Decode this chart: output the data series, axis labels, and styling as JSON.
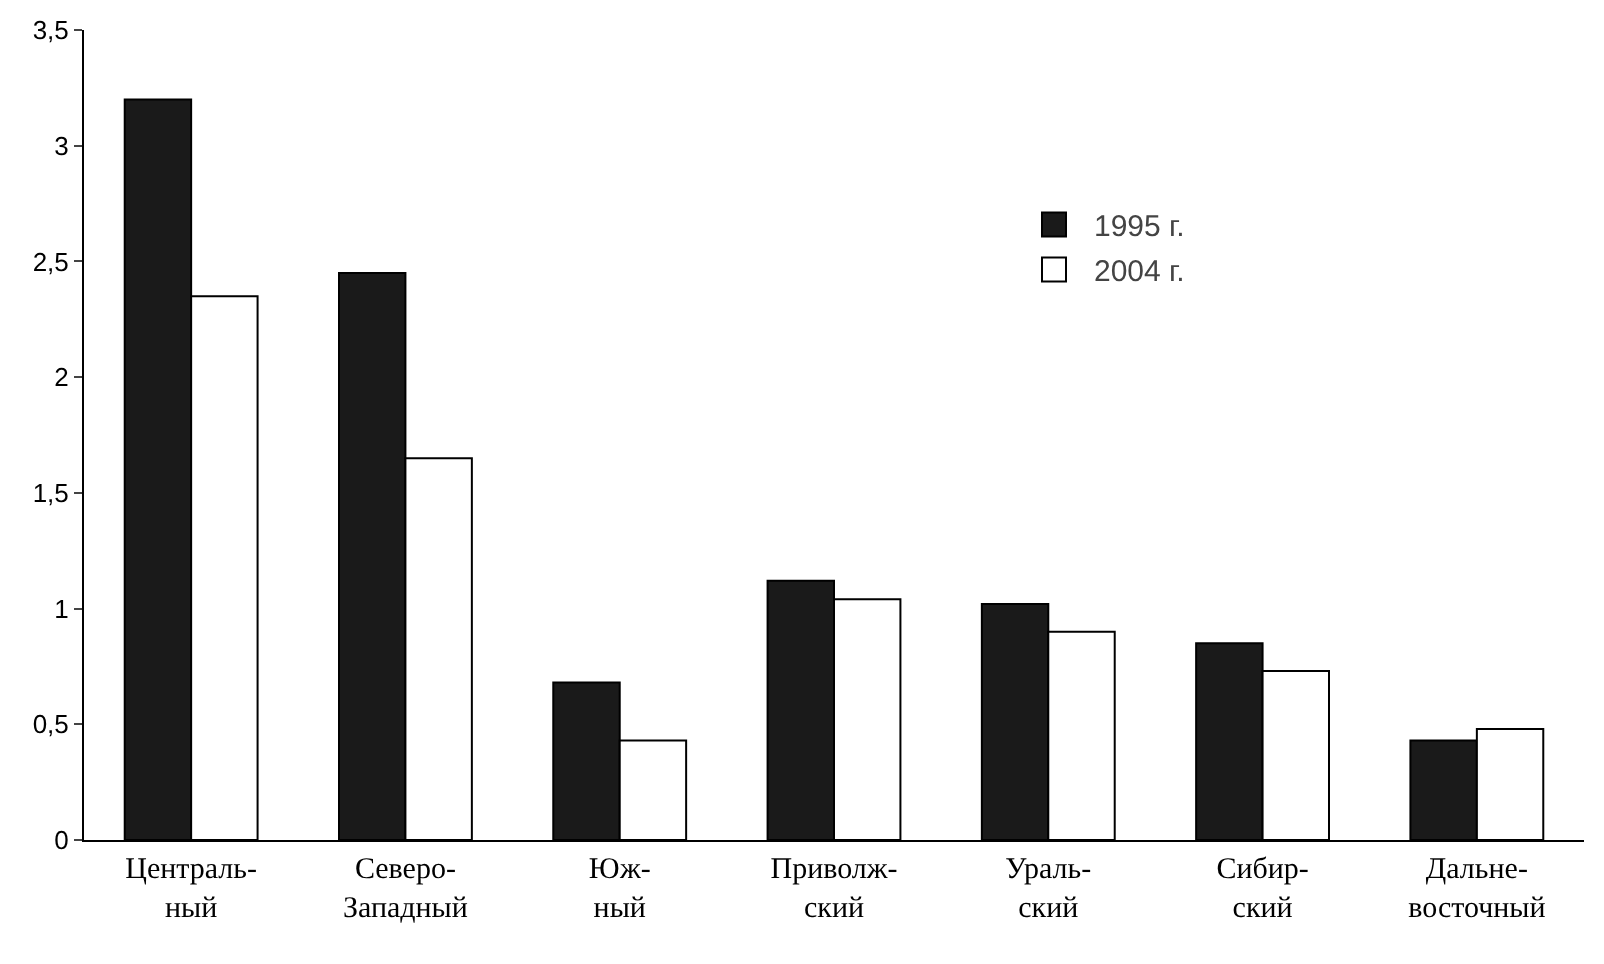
{
  "chart_data": {
    "type": "bar",
    "categories": [
      "Централь-\nный",
      "Северо-\nЗападный",
      "Юж-\nный",
      "Приволж-\nский",
      "Ураль-\nский",
      "Сибир-\nский",
      "Дальне-\nвосточный"
    ],
    "series": [
      {
        "name": "1995 г.",
        "color": "#1a1a1a",
        "values": [
          3.2,
          2.45,
          0.68,
          1.12,
          1.02,
          0.85,
          0.43
        ]
      },
      {
        "name": "2004 г.",
        "color": "#ffffff",
        "values": [
          2.35,
          1.65,
          0.43,
          1.04,
          0.9,
          0.73,
          0.48
        ]
      }
    ],
    "ylim": [
      0,
      3.5
    ],
    "yticks": [
      0,
      {
        "value": 0.5,
        "label": "0,5"
      },
      1,
      {
        "value": 1.5,
        "label": "1,5"
      },
      2,
      {
        "value": 2.5,
        "label": "2,5"
      },
      3,
      {
        "value": 3.5,
        "label": "3,5"
      }
    ],
    "grid": false,
    "legend": "top right"
  }
}
